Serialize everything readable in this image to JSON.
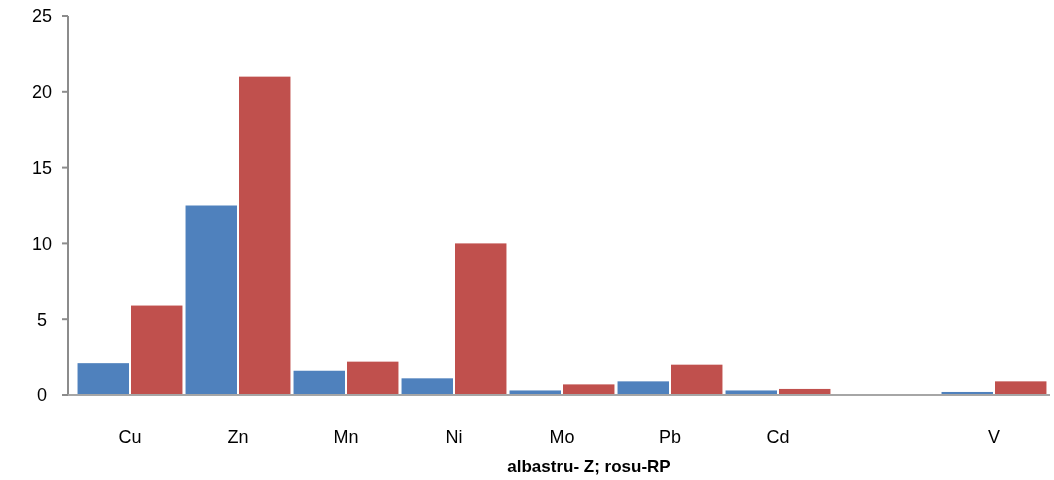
{
  "chart_data": {
    "type": "bar",
    "xlabel": "albastru- Z; rosu-RP",
    "categories": [
      "Cu",
      "Zn",
      "Mn",
      "Ni",
      "Mo",
      "Pb",
      "Cd",
      null,
      "V"
    ],
    "series": [
      {
        "color": "#4f81bd",
        "values": [
          2.1,
          12.5,
          1.6,
          1.1,
          0.3,
          0.9,
          0.3,
          null,
          0.2
        ]
      },
      {
        "color": "#c0504d",
        "values": [
          5.9,
          21.0,
          2.2,
          10.0,
          0.7,
          2.0,
          0.4,
          null,
          0.9
        ]
      }
    ],
    "ylim": [
      0,
      25
    ],
    "yticks": [
      0,
      5,
      10,
      15,
      20,
      25
    ]
  }
}
